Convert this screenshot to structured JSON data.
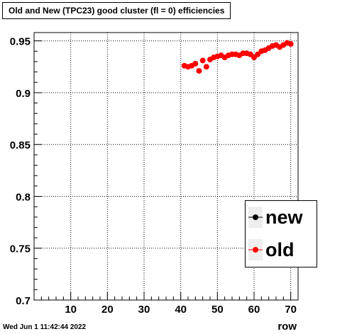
{
  "chart_data": {
    "type": "scatter",
    "title": "Old and New (TPC23) good cluster (fl = 0) efficiencies",
    "xlabel": "row",
    "ylabel": "",
    "xlim": [
      0,
      72
    ],
    "ylim": [
      0.7,
      0.958
    ],
    "xticks": [
      "10",
      "20",
      "30",
      "40",
      "50",
      "60",
      "70"
    ],
    "yticks": [
      "0.7",
      "0.75",
      "0.8",
      "0.85",
      "0.9",
      "0.95"
    ],
    "grid": true,
    "legend_position": "bottom-right",
    "series": [
      {
        "name": "new",
        "color": "#000000",
        "x": [],
        "y": []
      },
      {
        "name": "old",
        "color": "#ff0000",
        "x": [
          41,
          42,
          43,
          44,
          45,
          46,
          47,
          48,
          49,
          50,
          51,
          52,
          53,
          54,
          55,
          56,
          57,
          58,
          59,
          60,
          61,
          62,
          63,
          64,
          65,
          66,
          67,
          68,
          69,
          70
        ],
        "y": [
          0.926,
          0.925,
          0.926,
          0.928,
          0.921,
          0.931,
          0.925,
          0.932,
          0.934,
          0.935,
          0.936,
          0.934,
          0.936,
          0.937,
          0.937,
          0.936,
          0.938,
          0.938,
          0.937,
          0.934,
          0.937,
          0.94,
          0.941,
          0.943,
          0.945,
          0.946,
          0.944,
          0.946,
          0.948,
          0.947
        ]
      }
    ]
  },
  "footer": {
    "timestamp": "Wed Jun  1 11:42:44 2022"
  }
}
